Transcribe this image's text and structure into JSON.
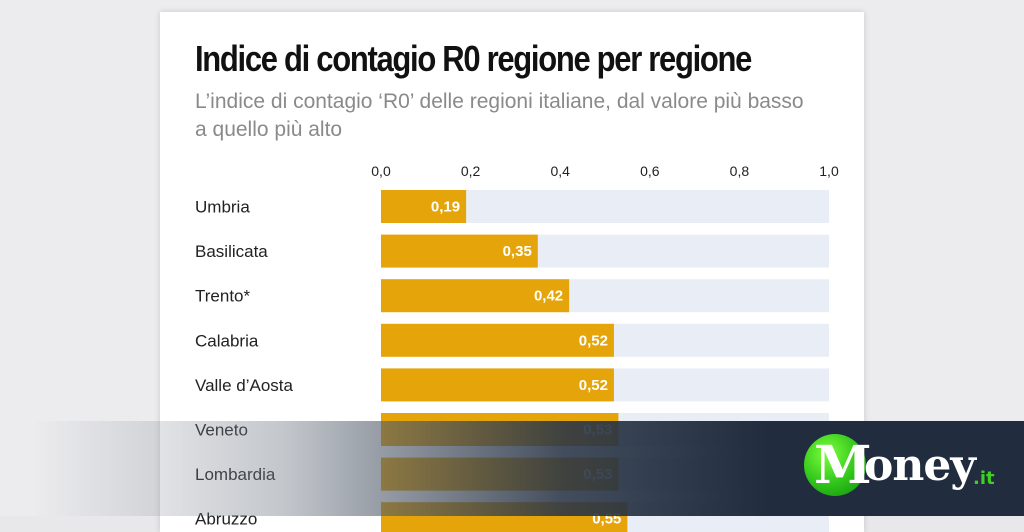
{
  "chart_data": {
    "type": "bar",
    "orientation": "horizontal",
    "title": "Indice di contagio R0 regione per regione",
    "subtitle": "L’indice di contagio ‘R0’ delle regioni italiane, dal valore più basso a quello più alto",
    "xlim": [
      0,
      1.0
    ],
    "xticks": [
      "0,0",
      "0,2",
      "0,4",
      "0,6",
      "0,8",
      "1,0"
    ],
    "xtick_values": [
      0,
      0.2,
      0.4,
      0.6,
      0.8,
      1.0
    ],
    "categories": [
      "Umbria",
      "Basilicata",
      "Trento*",
      "Calabria",
      "Valle d’Aosta",
      "Veneto",
      "Lombardia",
      "Abruzzo"
    ],
    "values": [
      0.19,
      0.35,
      0.42,
      0.52,
      0.52,
      0.53,
      0.53,
      0.55
    ],
    "value_labels": [
      "0,19",
      "0,35",
      "0,42",
      "0,52",
      "0,52",
      "0,53",
      "0,53",
      "0,55"
    ],
    "bar_color": "#e5a50a",
    "track_color": "#e9eef6"
  },
  "logo": {
    "m": "M",
    "text": "oney",
    "suffix": ".it"
  }
}
